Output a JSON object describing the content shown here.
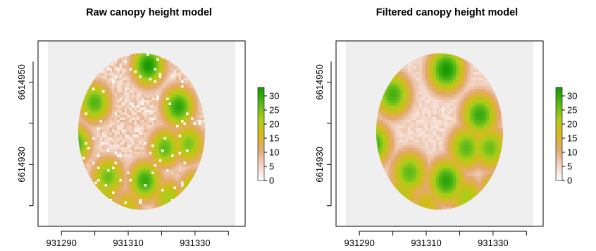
{
  "chart_data": [
    {
      "type": "heatmap",
      "title": "Raw canopy height model",
      "xlabel": "",
      "ylabel": "",
      "x_ticks": [
        "931290",
        "931310",
        "931330"
      ],
      "y_ticks": [
        "6614930",
        "6614950"
      ],
      "xlim": [
        931283,
        931345
      ],
      "ylim": [
        6614915,
        6614960
      ],
      "plot_center": [
        931314,
        6614938
      ],
      "plot_radius_m": 19,
      "legend": {
        "ticks": [
          "0",
          "5",
          "10",
          "15",
          "20",
          "25",
          "30"
        ],
        "min": 0,
        "max": 33
      },
      "colormap": [
        "#ffffff",
        "#f2d4c6",
        "#e3a873",
        "#d6ba1e",
        "#a8cd1a",
        "#55b618",
        "#149900"
      ],
      "canopy_patches": [
        {
          "x": 931300,
          "y": 6614945,
          "height": 28
        },
        {
          "x": 931316,
          "y": 6614954,
          "height": 33
        },
        {
          "x": 931325,
          "y": 6614944,
          "height": 31
        },
        {
          "x": 931294,
          "y": 6614935,
          "height": 30
        },
        {
          "x": 931304,
          "y": 6614927,
          "height": 26
        },
        {
          "x": 931315,
          "y": 6614926,
          "height": 30
        },
        {
          "x": 931321,
          "y": 6614934,
          "height": 27
        },
        {
          "x": 931328,
          "y": 6614935,
          "height": 25
        },
        {
          "x": 931330,
          "y": 6614924,
          "height": 24
        },
        {
          "x": 931322,
          "y": 6614922,
          "height": 22
        },
        {
          "x": 931303,
          "y": 6614923,
          "height": 20
        },
        {
          "x": 931310,
          "y": 6614920,
          "height": 18
        }
      ]
    },
    {
      "type": "heatmap",
      "title": "Filtered canopy height model",
      "xlabel": "",
      "ylabel": "",
      "x_ticks": [
        "931290",
        "931310",
        "931330"
      ],
      "y_ticks": [
        "6614930",
        "6614950"
      ],
      "xlim": [
        931283,
        931345
      ],
      "ylim": [
        6614915,
        6614960
      ],
      "plot_center": [
        931314,
        6614938
      ],
      "plot_radius_m": 19,
      "legend": {
        "ticks": [
          "0",
          "5",
          "10",
          "15",
          "20",
          "25",
          "30"
        ],
        "min": 0,
        "max": 33
      },
      "colormap": [
        "#ffffff",
        "#f2d4c6",
        "#e3a873",
        "#d6ba1e",
        "#a8cd1a",
        "#55b618",
        "#149900"
      ],
      "canopy_patches": [
        {
          "x": 931300,
          "y": 6614947,
          "height": 29
        },
        {
          "x": 931316,
          "y": 6614953,
          "height": 33
        },
        {
          "x": 931326,
          "y": 6614942,
          "height": 30
        },
        {
          "x": 931294,
          "y": 6614935,
          "height": 30
        },
        {
          "x": 931305,
          "y": 6614928,
          "height": 27
        },
        {
          "x": 931316,
          "y": 6614926,
          "height": 31
        },
        {
          "x": 931322,
          "y": 6614934,
          "height": 27
        },
        {
          "x": 931329,
          "y": 6614934,
          "height": 26
        },
        {
          "x": 931331,
          "y": 6614923,
          "height": 25
        },
        {
          "x": 931322,
          "y": 6614922,
          "height": 22
        },
        {
          "x": 931303,
          "y": 6614923,
          "height": 20
        },
        {
          "x": 931310,
          "y": 6614920,
          "height": 18
        }
      ]
    }
  ]
}
